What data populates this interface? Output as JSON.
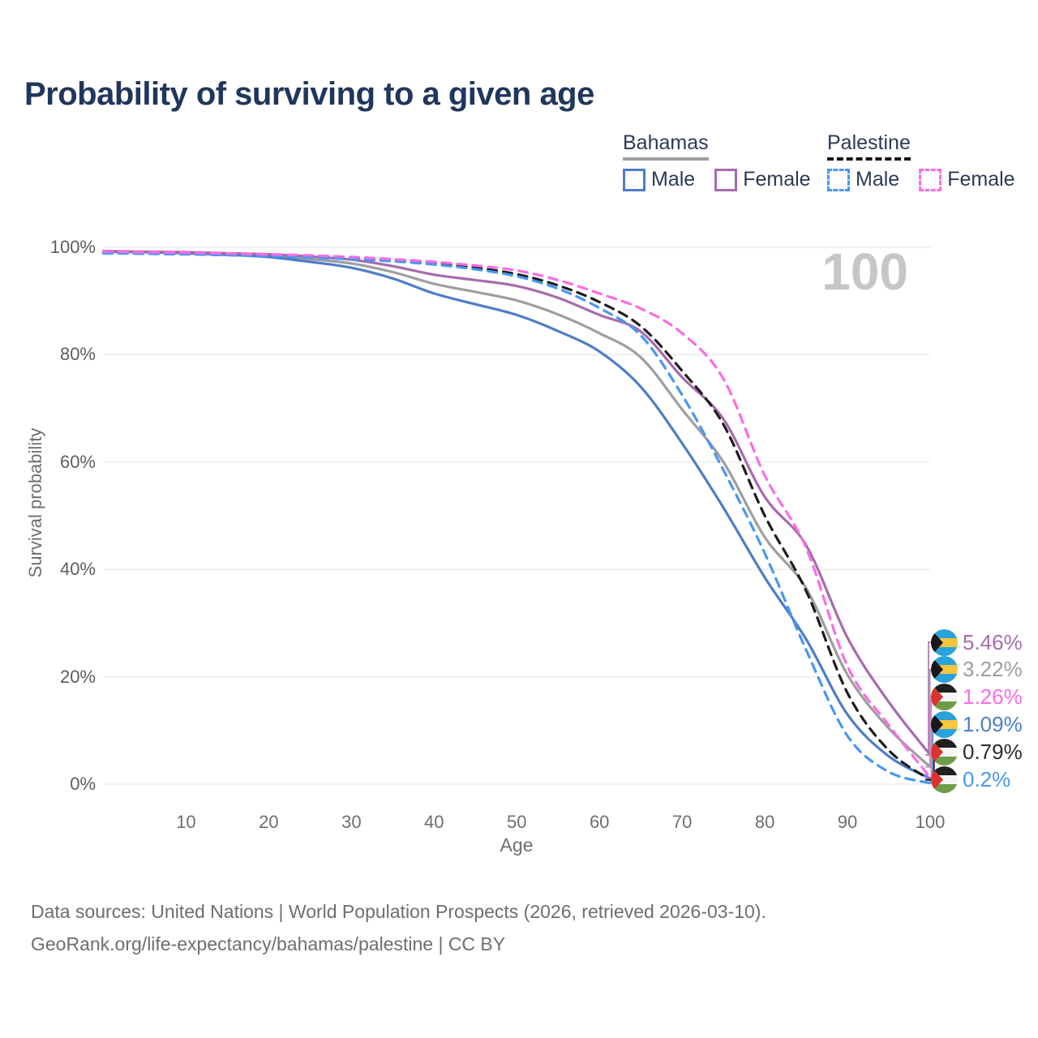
{
  "title": "Probability of surviving to a given age",
  "watermark": "100",
  "legend": {
    "groups": [
      {
        "name": "Bahamas",
        "line_style": "solid",
        "underline_color": "#9e9ea2",
        "items": [
          {
            "label": "Male",
            "color": "#4e7dc8"
          },
          {
            "label": "Female",
            "color": "#a76bac"
          }
        ]
      },
      {
        "name": "Palestine",
        "line_style": "dashed",
        "underline_color": "#151515",
        "items": [
          {
            "label": "Male",
            "color": "#4797f3"
          },
          {
            "label": "Female",
            "color": "#fb6ce0"
          }
        ]
      }
    ]
  },
  "chart_data": {
    "type": "line",
    "title": "Probability of surviving to a given age",
    "xlabel": "Age",
    "ylabel": "Survival probability",
    "xlim": [
      0,
      100
    ],
    "ylim": [
      0,
      100
    ],
    "grid": "horizontal",
    "x_ticks": [
      10,
      20,
      30,
      40,
      50,
      60,
      70,
      80,
      90,
      100
    ],
    "y_ticks": [
      0,
      20,
      40,
      60,
      80,
      100
    ],
    "y_tick_labels": [
      "0%",
      "20%",
      "40%",
      "60%",
      "80%",
      "100%"
    ],
    "x": [
      0,
      5,
      10,
      15,
      20,
      25,
      30,
      35,
      40,
      45,
      50,
      55,
      60,
      65,
      70,
      75,
      80,
      85,
      90,
      95,
      100
    ],
    "series": [
      {
        "name": "Bahamas Both sexes",
        "country": "Bahamas",
        "sex": "both",
        "color": "#9e9ea2",
        "line_style": "solid",
        "values": [
          99.25,
          99.15,
          99.0,
          98.75,
          98.45,
          97.8,
          97.0,
          95.4,
          93.2,
          91.7,
          90.1,
          87.5,
          84.0,
          79.5,
          69.8,
          60.0,
          46.0,
          36.5,
          20.4,
          10.4,
          3.22
        ]
      },
      {
        "name": "Bahamas Male",
        "country": "Bahamas",
        "sex": "male",
        "color": "#4e7dc8",
        "line_style": "solid",
        "values": [
          99.2,
          99.1,
          98.9,
          98.6,
          98.2,
          97.3,
          96.2,
          94.2,
          91.4,
          89.4,
          87.4,
          84.4,
          80.6,
          74.0,
          63.5,
          51.5,
          38.5,
          27.0,
          13.0,
          5.2,
          1.09
        ]
      },
      {
        "name": "Bahamas Female",
        "country": "Bahamas",
        "sex": "female",
        "color": "#a76bac",
        "line_style": "solid",
        "values": [
          99.3,
          99.2,
          99.1,
          98.9,
          98.7,
          98.3,
          97.7,
          96.5,
          94.9,
          93.9,
          92.8,
          90.6,
          87.4,
          84.3,
          75.8,
          68.0,
          53.5,
          44.5,
          27.3,
          15.3,
          5.46
        ]
      },
      {
        "name": "Palestine Both sexes",
        "country": "Palestine",
        "sex": "both",
        "color": "#1d1d1d",
        "line_style": "dashed",
        "values": [
          99.0,
          98.9,
          98.8,
          98.7,
          98.55,
          98.3,
          98.0,
          97.6,
          97.1,
          96.2,
          95.0,
          92.9,
          89.8,
          85.3,
          77.0,
          67.0,
          50.0,
          36.0,
          17.0,
          6.3,
          0.79
        ]
      },
      {
        "name": "Palestine Male",
        "country": "Palestine",
        "sex": "male",
        "color": "#4797f3",
        "line_style": "dashed",
        "values": [
          98.9,
          98.8,
          98.7,
          98.55,
          98.4,
          98.1,
          97.8,
          97.4,
          96.8,
          95.9,
          94.6,
          92.3,
          88.7,
          83.6,
          72.5,
          58.5,
          43.0,
          25.0,
          9.0,
          2.3,
          0.2
        ]
      },
      {
        "name": "Palestine Female",
        "country": "Palestine",
        "sex": "female",
        "color": "#fb6ce0",
        "line_style": "dashed",
        "values": [
          99.2,
          99.1,
          99.0,
          98.85,
          98.7,
          98.5,
          98.2,
          97.8,
          97.3,
          96.6,
          95.7,
          93.9,
          91.4,
          88.6,
          84.0,
          75.5,
          57.5,
          44.0,
          22.0,
          11.0,
          1.26
        ]
      }
    ]
  },
  "end_labels": [
    {
      "series": "Bahamas Female",
      "flag": "bahamas",
      "value": "5.46%",
      "color": "#a76bac"
    },
    {
      "series": "Bahamas Both sexes",
      "flag": "bahamas",
      "value": "3.22%",
      "color": "#9e9ea2"
    },
    {
      "series": "Palestine Female",
      "flag": "palestine",
      "value": "1.26%",
      "color": "#fb6ce0"
    },
    {
      "series": "Bahamas Male",
      "flag": "bahamas",
      "value": "1.09%",
      "color": "#4e7dc8"
    },
    {
      "series": "Palestine Both sexes",
      "flag": "palestine",
      "value": "0.79%",
      "color": "#2b2b2b"
    },
    {
      "series": "Palestine Male",
      "flag": "palestine",
      "value": "0.2%",
      "color": "#4797f3"
    }
  ],
  "flags": {
    "bahamas": {
      "stripes": [
        "#2aa2dc",
        "#f8c53f",
        "#2aa2dc"
      ],
      "triangle": "#181818"
    },
    "palestine": {
      "stripes": [
        "#1f1f1f",
        "#f5f5f5",
        "#6f9c49"
      ],
      "triangle": "#d9342e"
    }
  },
  "colors": {
    "title": "#20365c",
    "grid": "#e8e8e8",
    "axis_text": "#6e6e6e",
    "watermark": "#c6c6c6"
  },
  "footer": {
    "line1": "Data sources: United Nations | World Population Prospects (2026, retrieved 2026-03-10).",
    "line2": "GeoRank.org/life-expectancy/bahamas/palestine | CC BY"
  }
}
